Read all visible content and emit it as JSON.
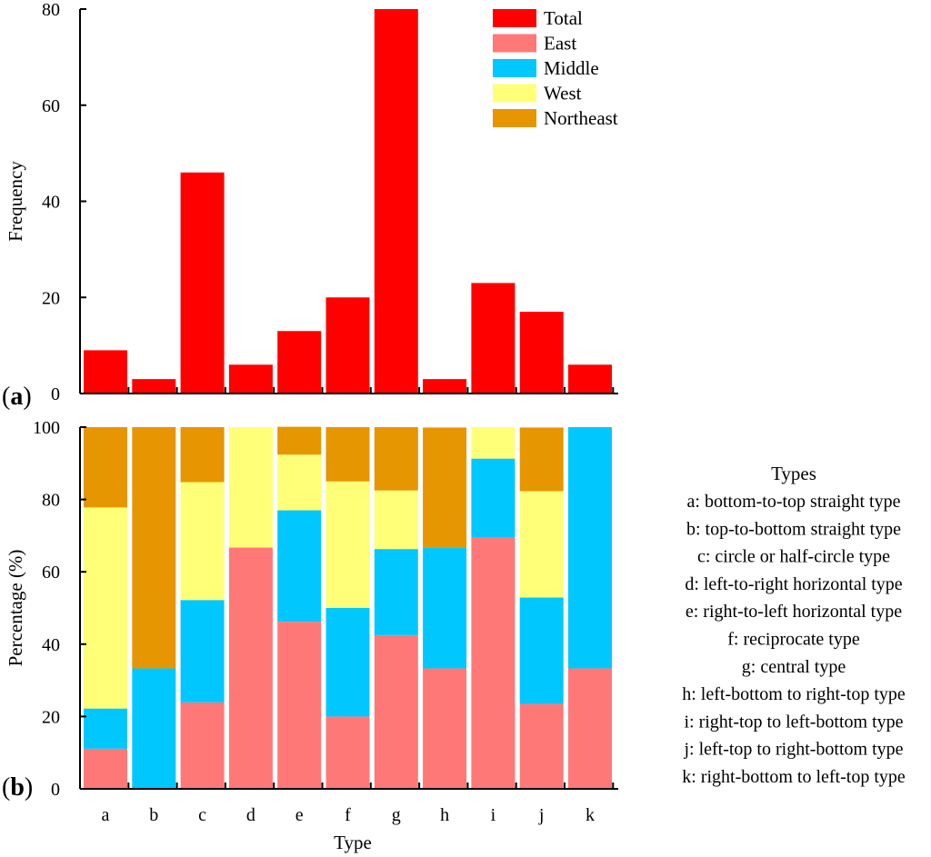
{
  "chart_data": [
    {
      "type": "bar",
      "panel_label": "a",
      "title": "",
      "xlabel": "",
      "ylabel": "Frequency",
      "ylim": [
        0,
        80
      ],
      "yticks": [
        0,
        20,
        40,
        60,
        80
      ],
      "categories": [
        "a",
        "b",
        "c",
        "d",
        "e",
        "f",
        "g",
        "h",
        "i",
        "j",
        "k"
      ],
      "series": [
        {
          "name": "Total",
          "color": "#ff0000",
          "values": [
            9,
            3,
            46,
            6,
            13,
            20,
            80,
            3,
            23,
            17,
            6
          ]
        }
      ]
    },
    {
      "type": "bar",
      "stacked": true,
      "panel_label": "b",
      "title": "",
      "xlabel": "Type",
      "ylabel": "Percentage (%)",
      "ylim": [
        0,
        100
      ],
      "yticks": [
        0,
        20,
        40,
        60,
        80,
        100
      ],
      "categories": [
        "a",
        "b",
        "c",
        "d",
        "e",
        "f",
        "g",
        "h",
        "i",
        "j",
        "k"
      ],
      "series": [
        {
          "name": "East",
          "color": "#ff7878",
          "values": [
            11.1,
            0,
            23.9,
            66.7,
            46.2,
            20,
            42.5,
            33.3,
            69.6,
            23.5,
            33.3
          ]
        },
        {
          "name": "Middle",
          "color": "#00c8ff",
          "values": [
            11.1,
            33.3,
            28.3,
            0,
            30.8,
            30,
            23.8,
            33.3,
            21.7,
            29.4,
            66.7
          ]
        },
        {
          "name": "West",
          "color": "#ffff78",
          "values": [
            55.6,
            0,
            32.6,
            33.3,
            15.4,
            35,
            16.2,
            0,
            8.7,
            29.4,
            0
          ]
        },
        {
          "name": "Northeast",
          "color": "#e69600",
          "values": [
            22.2,
            66.7,
            15.2,
            0,
            7.7,
            15,
            17.5,
            33.3,
            0,
            17.6,
            0
          ]
        }
      ]
    }
  ],
  "legend": {
    "position": "top-right",
    "items": [
      {
        "label": "Total",
        "color": "#ff0000"
      },
      {
        "label": "East",
        "color": "#ff7878"
      },
      {
        "label": "Middle",
        "color": "#00c8ff"
      },
      {
        "label": "West",
        "color": "#ffff78"
      },
      {
        "label": "Northeast",
        "color": "#e69600"
      }
    ]
  },
  "types_legend": {
    "title": "Types",
    "items": [
      "a: bottom-to-top straight type",
      "b: top-to-bottom straight type",
      "c: circle or half-circle type",
      "d: left-to-right horizontal type",
      "e: right-to-left horizontal type",
      "f: reciprocate type",
      "g: central type",
      "h: left-bottom to right-top type",
      "i: right-top to left-bottom type",
      "j: left-top to right-bottom type",
      "k: right-bottom to left-top type"
    ]
  }
}
